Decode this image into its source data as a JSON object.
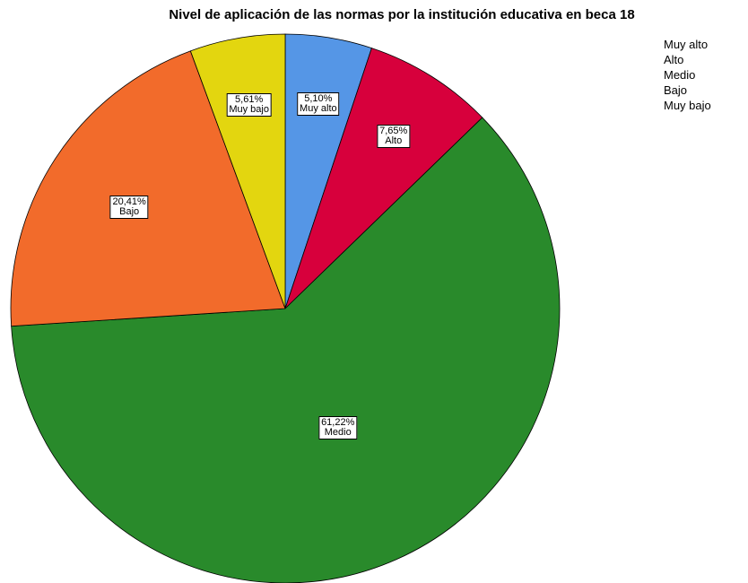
{
  "chart_data": {
    "type": "pie",
    "title": "Nivel de aplicación de las normas por la institución educativa en beca 18",
    "categories": [
      "Muy alto",
      "Alto",
      "Medio",
      "Bajo",
      "Muy bajo"
    ],
    "values": [
      5.1,
      7.65,
      61.22,
      20.41,
      5.61
    ],
    "value_labels": [
      "5,10%",
      "7,65%",
      "61,22%",
      "20,41%",
      "5,61%"
    ],
    "colors": [
      "#5596e6",
      "#d7003c",
      "#298a2b",
      "#f26b2b",
      "#e3d60f"
    ],
    "legend": "top-right"
  }
}
